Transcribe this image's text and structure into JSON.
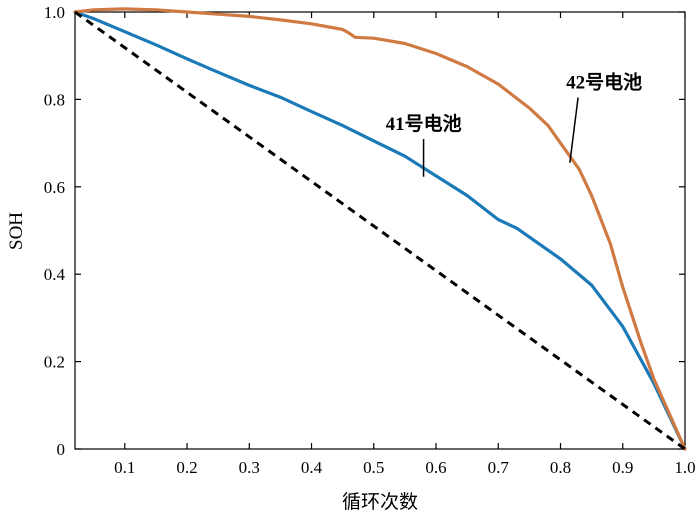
{
  "chart_data": {
    "type": "line",
    "title": "",
    "xlabel": "循环次数",
    "ylabel": "SOH",
    "xlim": [
      0.02,
      1.0
    ],
    "ylim": [
      0,
      1.0
    ],
    "x_ticks": [
      0.1,
      0.2,
      0.3,
      0.4,
      0.5,
      0.6,
      0.7,
      0.8,
      0.9,
      1.0
    ],
    "x_tick_labels": [
      "0.1",
      "0.2",
      "0.3",
      "0.4",
      "0.5",
      "0.6",
      "0.7",
      "0.8",
      "0.9",
      "1.0"
    ],
    "y_ticks": [
      0,
      0.2,
      0.4,
      0.6,
      0.8,
      1.0
    ],
    "y_tick_labels": [
      "0",
      "0.2",
      "0.4",
      "0.6",
      "0.8",
      "1.0"
    ],
    "grid": false,
    "legend": "none",
    "series": [
      {
        "name": "41号电池",
        "color": "#1a7ab8",
        "x": [
          0.02,
          0.05,
          0.1,
          0.15,
          0.2,
          0.25,
          0.3,
          0.35,
          0.4,
          0.45,
          0.5,
          0.55,
          0.6,
          0.65,
          0.7,
          0.73,
          0.75,
          0.8,
          0.85,
          0.9,
          0.95,
          1.0
        ],
        "y": [
          1.0,
          0.985,
          0.955,
          0.925,
          0.893,
          0.862,
          0.832,
          0.805,
          0.772,
          0.74,
          0.705,
          0.67,
          0.625,
          0.58,
          0.525,
          0.505,
          0.485,
          0.435,
          0.375,
          0.28,
          0.15,
          0.0
        ]
      },
      {
        "name": "42号电池",
        "color": "#d07a43",
        "x": [
          0.02,
          0.05,
          0.1,
          0.15,
          0.2,
          0.25,
          0.3,
          0.35,
          0.4,
          0.45,
          0.46,
          0.47,
          0.5,
          0.55,
          0.6,
          0.65,
          0.7,
          0.75,
          0.78,
          0.8,
          0.83,
          0.85,
          0.88,
          0.9,
          0.93,
          0.95,
          1.0
        ],
        "y": [
          1.0,
          1.005,
          1.007,
          1.005,
          1.0,
          0.995,
          0.99,
          0.982,
          0.973,
          0.96,
          0.952,
          0.942,
          0.94,
          0.928,
          0.905,
          0.875,
          0.835,
          0.78,
          0.74,
          0.7,
          0.64,
          0.58,
          0.47,
          0.37,
          0.24,
          0.16,
          0.0
        ]
      },
      {
        "name": "",
        "color": "#000000",
        "dash": "dashed",
        "x": [
          0.02,
          1.0
        ],
        "y": [
          1.0,
          0.0
        ]
      }
    ],
    "annotations": [
      {
        "text": "41号电池",
        "series_index": 0,
        "text_x": 0.58,
        "text_y": 0.73,
        "point_x": 0.58,
        "point_y": 0.623
      },
      {
        "text": "42号电池",
        "series_index": 1,
        "text_x": 0.87,
        "text_y": 0.825,
        "point_x": 0.815,
        "point_y": 0.655
      }
    ]
  }
}
